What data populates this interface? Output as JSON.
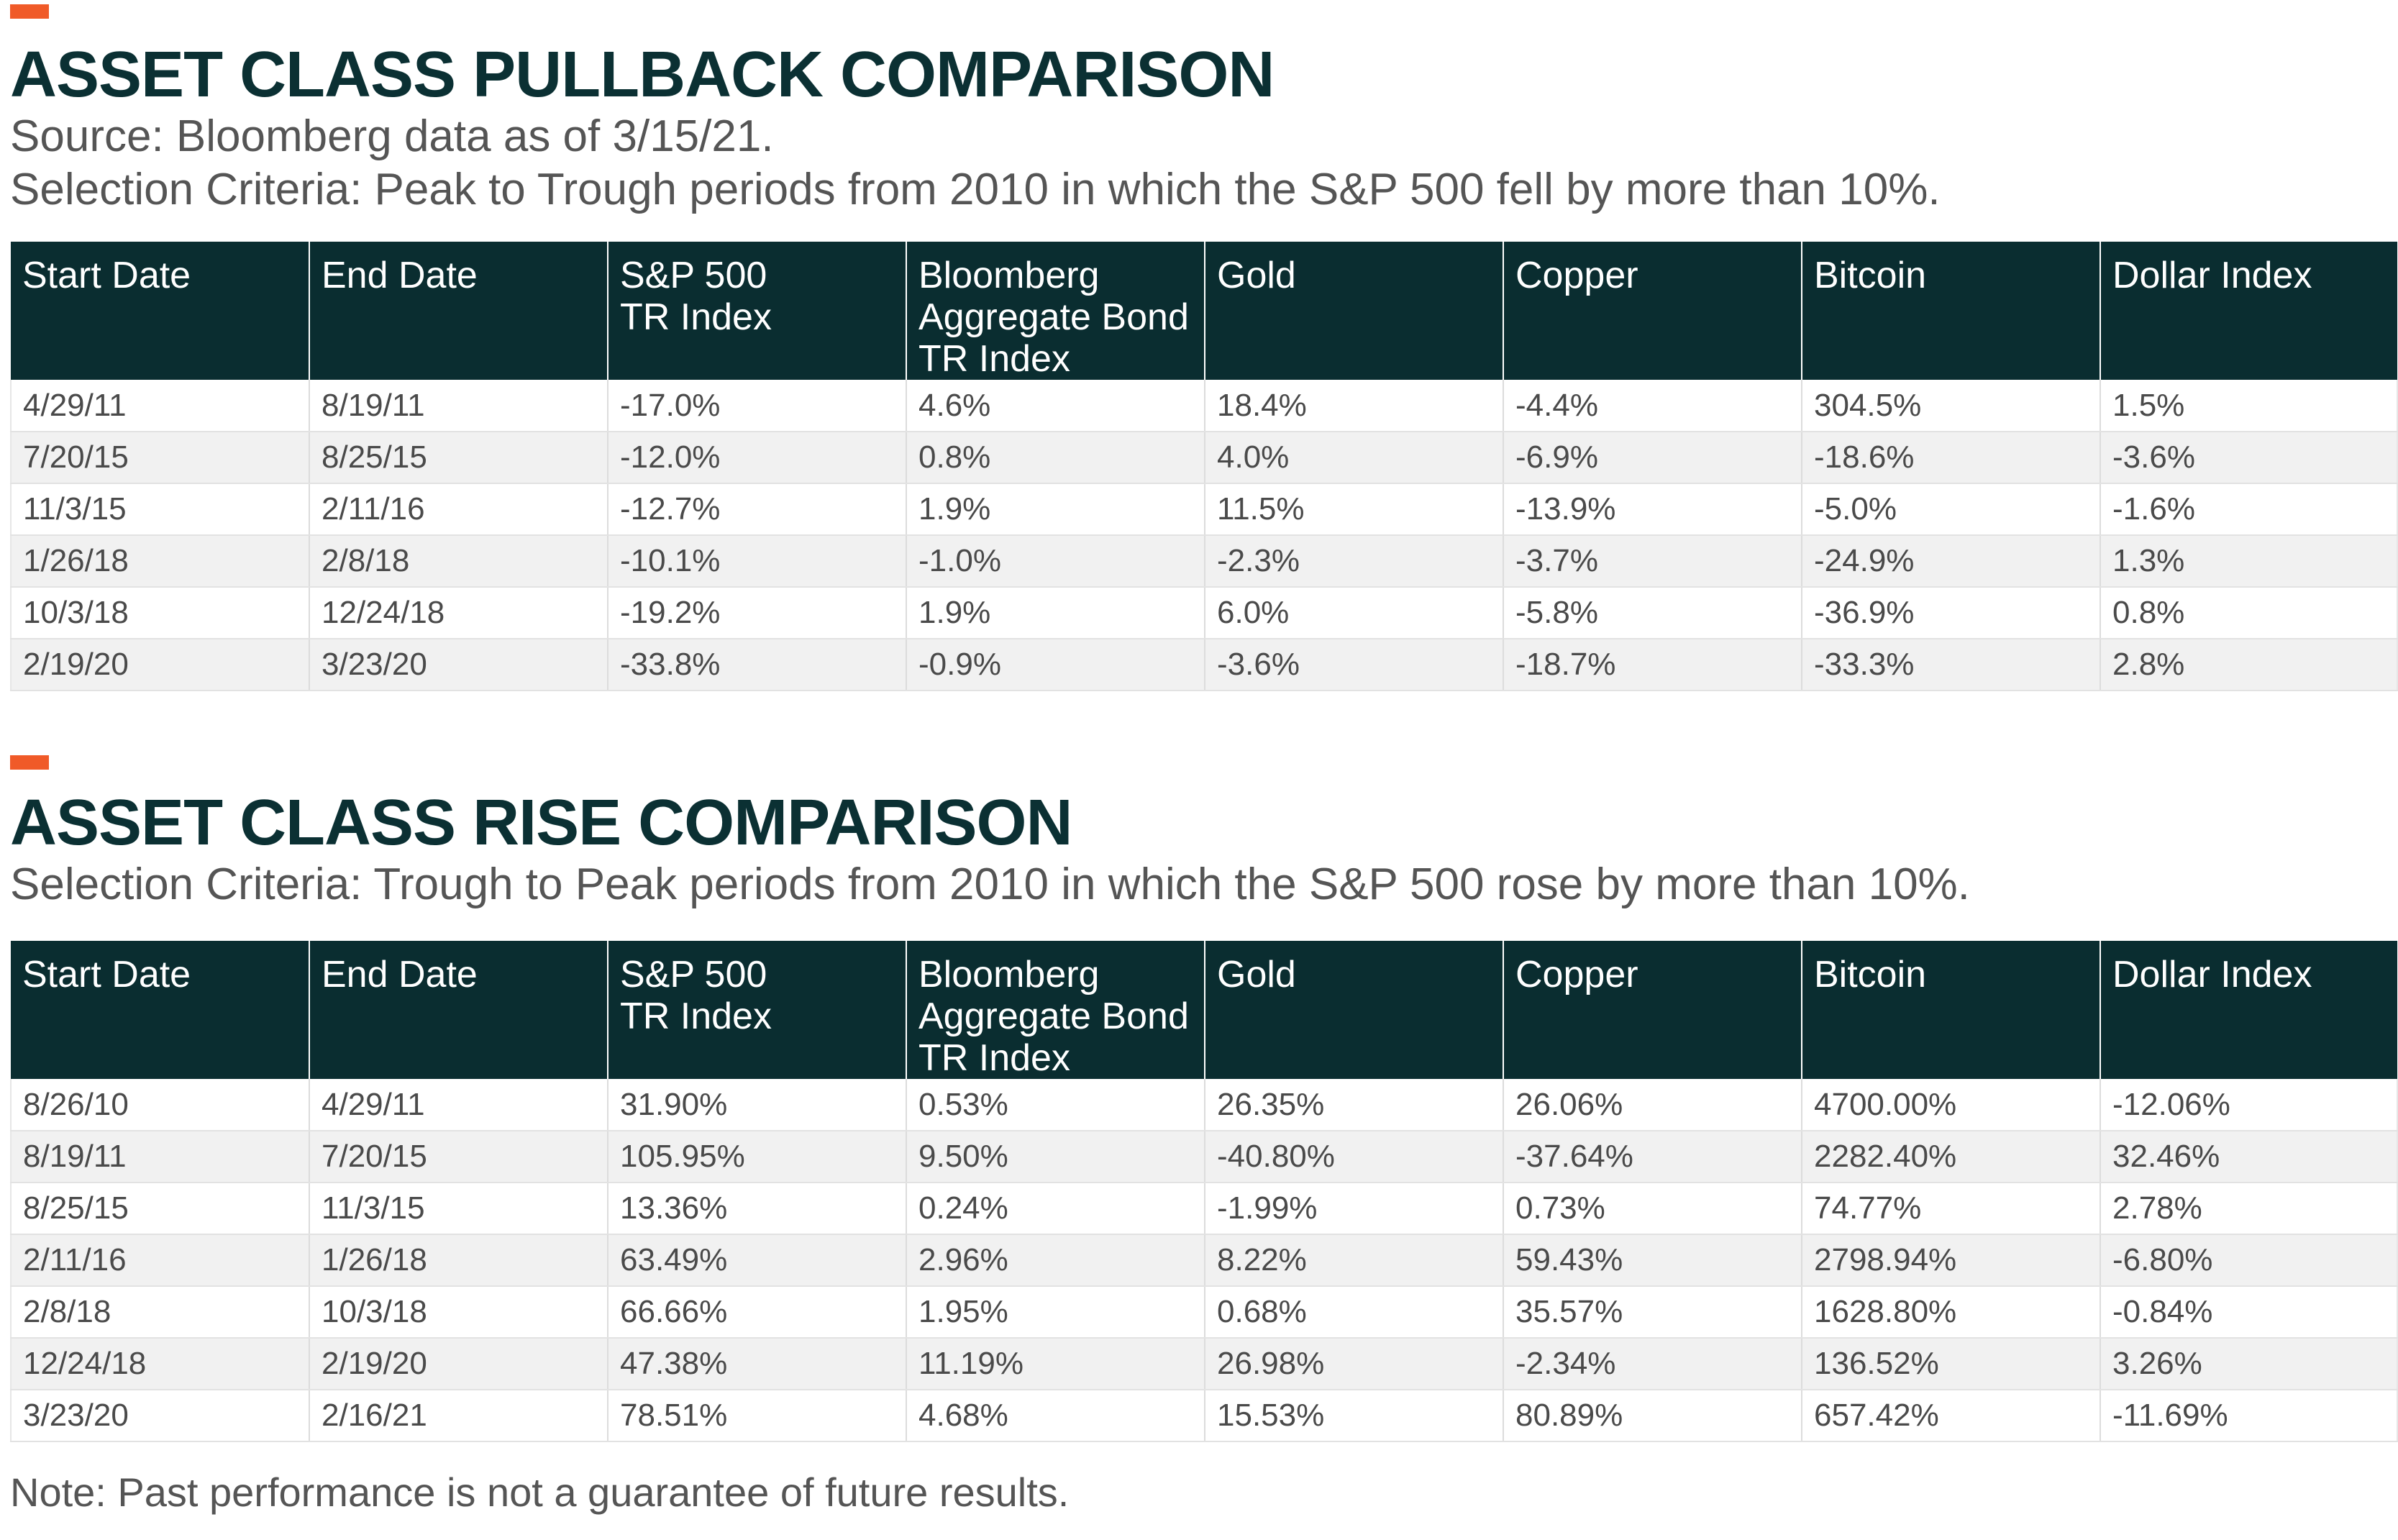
{
  "colors": {
    "accent": "#f05a28",
    "header_bg": "#0a2d30",
    "title_text": "#0b3033",
    "stripe": "#f1f1f1"
  },
  "columns": [
    "Start Date",
    "End Date",
    "S&P 500 TR Index",
    "Bloomberg Aggregate Bond TR Index",
    "Gold",
    "Copper",
    "Bitcoin",
    "Dollar Index"
  ],
  "pullback": {
    "title": "ASSET CLASS PULLBACK COMPARISON",
    "source": "Source: Bloomberg data as of 3/15/21.",
    "criteria": "Selection Criteria: Peak to Trough periods from 2010 in which the S&P 500 fell by more than 10%.",
    "rows": [
      [
        "4/29/11",
        "8/19/11",
        "-17.0%",
        "4.6%",
        "18.4%",
        "-4.4%",
        "304.5%",
        "1.5%"
      ],
      [
        "7/20/15",
        "8/25/15",
        "-12.0%",
        "0.8%",
        "4.0%",
        "-6.9%",
        "-18.6%",
        "-3.6%"
      ],
      [
        "11/3/15",
        "2/11/16",
        "-12.7%",
        "1.9%",
        "11.5%",
        "-13.9%",
        "-5.0%",
        "-1.6%"
      ],
      [
        "1/26/18",
        "2/8/18",
        "-10.1%",
        "-1.0%",
        "-2.3%",
        "-3.7%",
        "-24.9%",
        "1.3%"
      ],
      [
        "10/3/18",
        "12/24/18",
        "-19.2%",
        "1.9%",
        "6.0%",
        "-5.8%",
        "-36.9%",
        "0.8%"
      ],
      [
        "2/19/20",
        "3/23/20",
        "-33.8%",
        "-0.9%",
        "-3.6%",
        "-18.7%",
        "-33.3%",
        "2.8%"
      ]
    ]
  },
  "rise": {
    "title": "ASSET CLASS RISE COMPARISON",
    "criteria": "Selection Criteria: Trough to Peak periods from 2010 in which the S&P 500 rose by more than 10%.",
    "rows": [
      [
        "8/26/10",
        "4/29/11",
        "31.90%",
        "0.53%",
        "26.35%",
        "26.06%",
        "4700.00%",
        "-12.06%"
      ],
      [
        "8/19/11",
        "7/20/15",
        "105.95%",
        "9.50%",
        "-40.80%",
        "-37.64%",
        "2282.40%",
        "32.46%"
      ],
      [
        "8/25/15",
        "11/3/15",
        "13.36%",
        "0.24%",
        "-1.99%",
        "0.73%",
        "74.77%",
        "2.78%"
      ],
      [
        "2/11/16",
        "1/26/18",
        "63.49%",
        "2.96%",
        "8.22%",
        "59.43%",
        "2798.94%",
        "-6.80%"
      ],
      [
        "2/8/18",
        "10/3/18",
        "66.66%",
        "1.95%",
        "0.68%",
        "35.57%",
        "1628.80%",
        "-0.84%"
      ],
      [
        "12/24/18",
        "2/19/20",
        "47.38%",
        "11.19%",
        "26.98%",
        "-2.34%",
        "136.52%",
        "3.26%"
      ],
      [
        "3/23/20",
        "2/16/21",
        "78.51%",
        "4.68%",
        "15.53%",
        "80.89%",
        "657.42%",
        "-11.69%"
      ]
    ]
  },
  "note": "Note: Past performance is not a guarantee of future results."
}
